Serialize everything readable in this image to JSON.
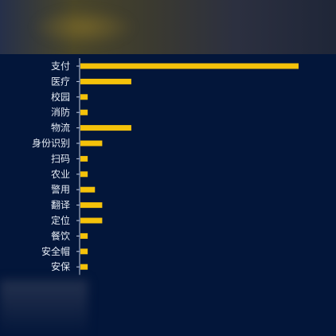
{
  "colors": {
    "background": "#03163a",
    "bar": "#f5c20a",
    "axis": "#c7d0e0",
    "label": "#e6ecf5"
  },
  "chart_data": {
    "type": "bar",
    "orientation": "horizontal",
    "title": "",
    "xlabel": "",
    "ylabel": "",
    "categories": [
      "支付",
      "医疗",
      "校园",
      "消防",
      "物流",
      "身份识别",
      "扫码",
      "农业",
      "警用",
      "翻译",
      "定位",
      "餐饮",
      "安全帽",
      "安保"
    ],
    "values": [
      30,
      7,
      1,
      1,
      7,
      3,
      1,
      1,
      2,
      3,
      3,
      1,
      1,
      1
    ],
    "xlim": [
      0,
      30
    ],
    "grid": false,
    "legend": "none"
  }
}
